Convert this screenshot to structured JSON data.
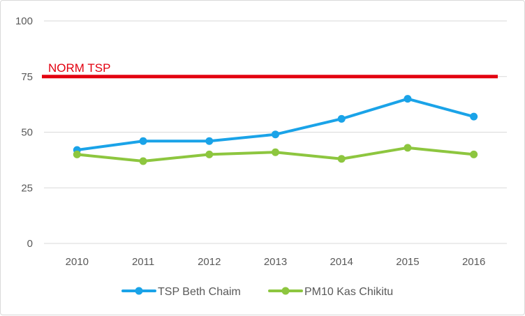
{
  "chart_data": {
    "type": "line",
    "title": "",
    "xlabel": "",
    "ylabel": "",
    "categories": [
      "2010",
      "2011",
      "2012",
      "2013",
      "2014",
      "2015",
      "2016"
    ],
    "ylim": [
      0,
      100
    ],
    "yticks": [
      "0",
      "25",
      "50",
      "75",
      "100"
    ],
    "grid": true,
    "legend": "bottom",
    "series": [
      {
        "name": "TSP Beth Chaim",
        "color": "#1aa3e8",
        "values": [
          42,
          46,
          46,
          49,
          56,
          65,
          57
        ]
      },
      {
        "name": "PM10 Kas Chikitu",
        "color": "#8dc63f",
        "values": [
          40,
          37,
          40,
          41,
          38,
          43,
          40
        ]
      }
    ],
    "reference_line": {
      "label": "NORM TSP",
      "value": 75,
      "color": "#e3000f"
    }
  }
}
